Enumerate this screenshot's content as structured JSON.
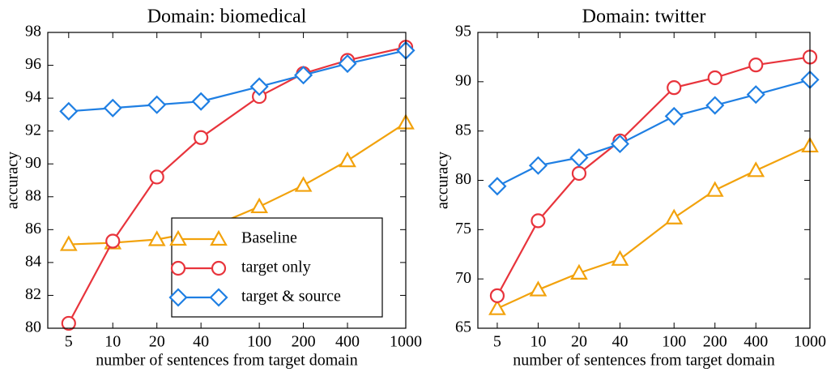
{
  "chart_data": [
    {
      "type": "line",
      "title": "Domain: biomedical",
      "x_label": "number of sentences from target domain",
      "y_label": "accuracy",
      "x": [
        5,
        10,
        20,
        40,
        100,
        200,
        400,
        1000
      ],
      "xscale": "log",
      "xlim": [
        3.6,
        1000
      ],
      "xticks": [
        5,
        10,
        20,
        40,
        100,
        200,
        400,
        1000
      ],
      "ylim": [
        80,
        98
      ],
      "yticks": [
        80,
        82,
        84,
        86,
        88,
        90,
        92,
        94,
        96,
        98
      ],
      "legend": "lower right",
      "series": [
        {
          "name": "Baseline",
          "color": "#f2a20c",
          "marker": "triangle",
          "values": [
            85.1,
            85.2,
            85.4,
            85.9,
            87.4,
            88.7,
            90.2,
            92.5
          ]
        },
        {
          "name": "target only",
          "color": "#e8343c",
          "marker": "circle",
          "values": [
            80.3,
            85.3,
            89.2,
            91.6,
            94.1,
            95.5,
            96.3,
            97.1
          ]
        },
        {
          "name": "target & source",
          "color": "#1f7fe3",
          "marker": "diamond",
          "values": [
            93.2,
            93.4,
            93.6,
            93.8,
            94.7,
            95.4,
            96.1,
            96.9
          ]
        }
      ]
    },
    {
      "type": "line",
      "title": "Domain: twitter",
      "x_label": "number of sentences from target domain",
      "y_label": "accuracy",
      "x": [
        5,
        10,
        20,
        40,
        100,
        200,
        400,
        1000
      ],
      "xscale": "log",
      "xlim": [
        3.6,
        1000
      ],
      "xticks": [
        5,
        10,
        20,
        40,
        100,
        200,
        400,
        1000
      ],
      "ylim": [
        65,
        95
      ],
      "yticks": [
        65,
        70,
        75,
        80,
        85,
        90,
        95
      ],
      "series": [
        {
          "name": "Baseline",
          "color": "#f2a20c",
          "marker": "triangle",
          "values": [
            67.0,
            68.9,
            70.6,
            72.0,
            76.2,
            79.0,
            81.0,
            83.5
          ]
        },
        {
          "name": "target only",
          "color": "#e8343c",
          "marker": "circle",
          "values": [
            68.3,
            75.9,
            80.7,
            84.0,
            89.4,
            90.4,
            91.7,
            92.5
          ]
        },
        {
          "name": "target & source",
          "color": "#1f7fe3",
          "marker": "diamond",
          "values": [
            79.4,
            81.5,
            82.3,
            83.7,
            86.5,
            87.6,
            88.7,
            90.2
          ]
        }
      ]
    }
  ]
}
